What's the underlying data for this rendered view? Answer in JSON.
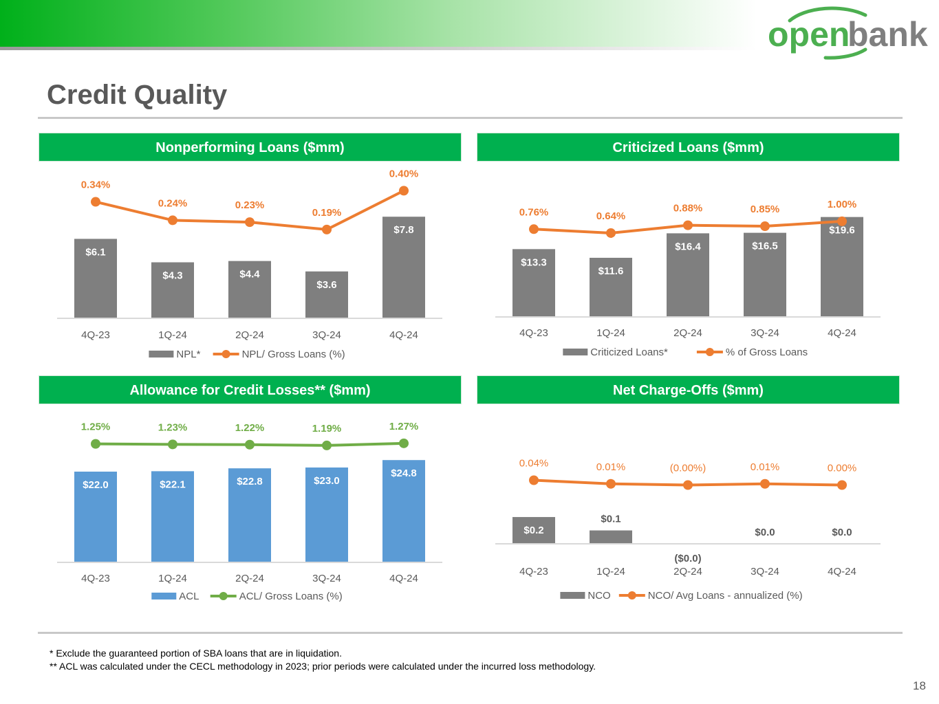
{
  "brand": {
    "name": "open bank",
    "word1": "open",
    "word2": "bank",
    "green": "#00b04f",
    "gray": "#7f7f7f"
  },
  "page": {
    "title": "Credit Quality",
    "number": "18"
  },
  "footnotes": [
    "* Exclude the guaranteed portion of SBA loans that are in liquidation.",
    "** ACL was calculated under the CECL methodology in 2023; prior periods were calculated under the incurred loss methodology."
  ],
  "chart_data": [
    {
      "type": "bar",
      "title": "Nonperforming Loans ($mm)",
      "categories": [
        "4Q-23",
        "1Q-24",
        "2Q-24",
        "3Q-24",
        "4Q-24"
      ],
      "bar_series": {
        "name": "NPL*",
        "values": [
          6.1,
          4.3,
          4.4,
          3.6,
          7.8
        ],
        "labels": [
          "$6.1",
          "$4.3",
          "$4.4",
          "$3.6",
          "$7.8"
        ],
        "color": "#7f7f7f"
      },
      "line_series": {
        "name": "NPL/ Gross Loans (%)",
        "values": [
          0.34,
          0.24,
          0.23,
          0.19,
          0.4
        ],
        "labels": [
          "0.34%",
          "0.24%",
          "0.23%",
          "0.19%",
          "0.40%"
        ],
        "color": "#ed7d31"
      },
      "bar_ylim": [
        0,
        9.5
      ],
      "line_ylim": [
        0.0,
        0.42
      ],
      "line_labels_bold": true,
      "legend": "bottom"
    },
    {
      "type": "bar",
      "title": "Criticized Loans ($mm)",
      "categories": [
        "4Q-23",
        "1Q-24",
        "2Q-24",
        "3Q-24",
        "4Q-24"
      ],
      "bar_series": {
        "name": "Criticized Loans*",
        "values": [
          13.3,
          11.6,
          16.4,
          16.5,
          19.6
        ],
        "labels": [
          "$13.3",
          "$11.6",
          "$16.4",
          "$16.5",
          "$19.6"
        ],
        "color": "#7f7f7f"
      },
      "line_series": {
        "name": "% of Gross Loans",
        "values": [
          0.76,
          0.64,
          0.88,
          0.85,
          1.0
        ],
        "labels": [
          "0.76%",
          "0.64%",
          "0.88%",
          "0.85%",
          "1.00%"
        ],
        "color": "#ed7d31"
      },
      "bar_ylim": [
        0,
        24
      ],
      "line_ylim": [
        -1.6,
        1.4
      ],
      "line_labels_bold": true,
      "legend": "bottom"
    },
    {
      "type": "bar",
      "title": "Allowance for Credit Losses** ($mm)",
      "categories": [
        "4Q-23",
        "1Q-24",
        "2Q-24",
        "3Q-24",
        "4Q-24"
      ],
      "bar_series": {
        "name": "ACL",
        "values": [
          22.0,
          22.1,
          22.8,
          23.0,
          24.8
        ],
        "labels": [
          "$22.0",
          "$22.1",
          "$22.8",
          "$23.0",
          "$24.8"
        ],
        "color": "#5b9bd5"
      },
      "line_series": {
        "name": "ACL/ Gross Loans (%)",
        "values": [
          1.25,
          1.23,
          1.22,
          1.19,
          1.27
        ],
        "labels": [
          "1.25%",
          "1.23%",
          "1.22%",
          "1.19%",
          "1.27%"
        ],
        "color": "#70ad47"
      },
      "bar_ylim": [
        0,
        33
      ],
      "line_ylim": [
        0.4,
        1.45
      ],
      "line_labels_bold": true,
      "legend": "bottom"
    },
    {
      "type": "bar",
      "title": "Net Charge-Offs ($mm)",
      "categories": [
        "4Q-23",
        "1Q-24",
        "2Q-24",
        "3Q-24",
        "4Q-24"
      ],
      "bar_series": {
        "name": "NCO",
        "values": [
          0.2,
          0.1,
          0.0,
          0.0,
          0.0
        ],
        "labels": [
          "$0.2",
          "$0.1",
          "($0.0)",
          "$0.0",
          "$0.0"
        ],
        "color": "#7f7f7f"
      },
      "line_series": {
        "name": "NCO/ Avg Loans - annualized (%)",
        "values": [
          0.04,
          0.01,
          0.0,
          0.01,
          0.0
        ],
        "labels": [
          "0.04%",
          "0.01%",
          "(0.00%)",
          "0.01%",
          "0.00%"
        ],
        "color": "#ed7d31"
      },
      "bar_ylim": [
        0,
        0.95
      ],
      "line_ylim": [
        -0.1,
        0.1
      ],
      "line_labels_bold": false,
      "legend": "bottom"
    }
  ]
}
